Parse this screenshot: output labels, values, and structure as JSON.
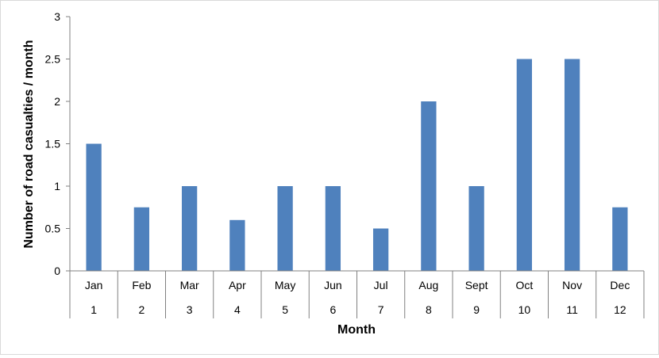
{
  "chart_data": {
    "type": "bar",
    "categories": [
      "Jan",
      "Feb",
      "Mar",
      "Apr",
      "May",
      "Jun",
      "Jul",
      "Aug",
      "Sept",
      "Oct",
      "Nov",
      "Dec"
    ],
    "category_numbers": [
      "1",
      "2",
      "3",
      "4",
      "5",
      "6",
      "7",
      "8",
      "9",
      "10",
      "11",
      "12"
    ],
    "values": [
      1.5,
      0.75,
      1,
      0.6,
      1,
      1,
      0.5,
      2,
      1,
      2.5,
      2.5,
      0.75
    ],
    "title": "",
    "xlabel": "Month",
    "ylabel": "Number of road casualties / month",
    "ylim": [
      0,
      3
    ],
    "yticks": [
      "0",
      "0.5",
      "1",
      "1.5",
      "2",
      "2.5",
      "3"
    ],
    "grid": false,
    "bar_color": "#4f81bd"
  }
}
